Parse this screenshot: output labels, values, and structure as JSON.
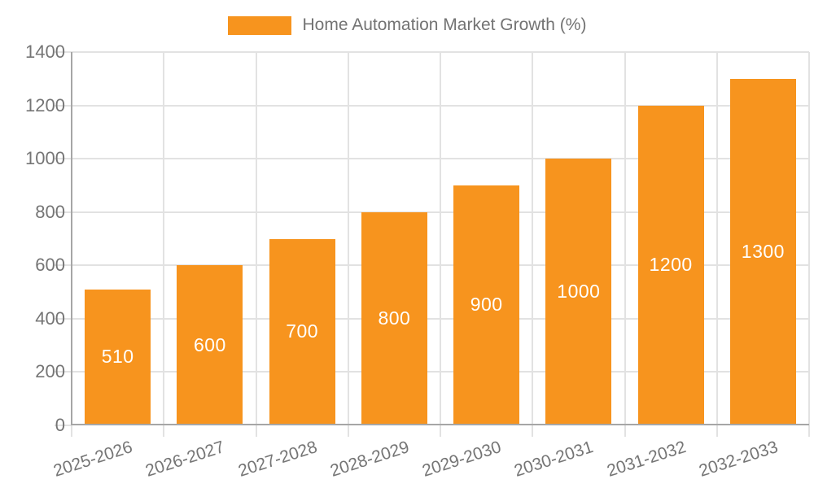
{
  "chart_data": {
    "type": "bar",
    "title": "Home Automation Market Growth (%)",
    "categories": [
      "2025-2026",
      "2026-2027",
      "2027-2028",
      "2028-2029",
      "2029-2030",
      "2030-2031",
      "2031-2032",
      "2032-2033"
    ],
    "values": [
      510,
      600,
      700,
      800,
      900,
      1000,
      1200,
      1300
    ],
    "xlabel": "",
    "ylabel": "",
    "ylim": [
      0,
      1400
    ],
    "ytick_step": 200,
    "ytick_labels": [
      "0",
      "200",
      "400",
      "600",
      "800",
      "1000",
      "1200",
      "1400"
    ],
    "grid": true,
    "legend_position": "top-center",
    "value_label_position": "center-of-bar",
    "x_label_rotation_deg": -18,
    "colors": {
      "bar": "#F7941E",
      "grid": "#E2E2E2",
      "axis": "#A6A6A6",
      "tick_label": "#757575",
      "legend_text": "#737373",
      "value_label": "#FFFFFF",
      "background": "#FFFFFF"
    }
  }
}
